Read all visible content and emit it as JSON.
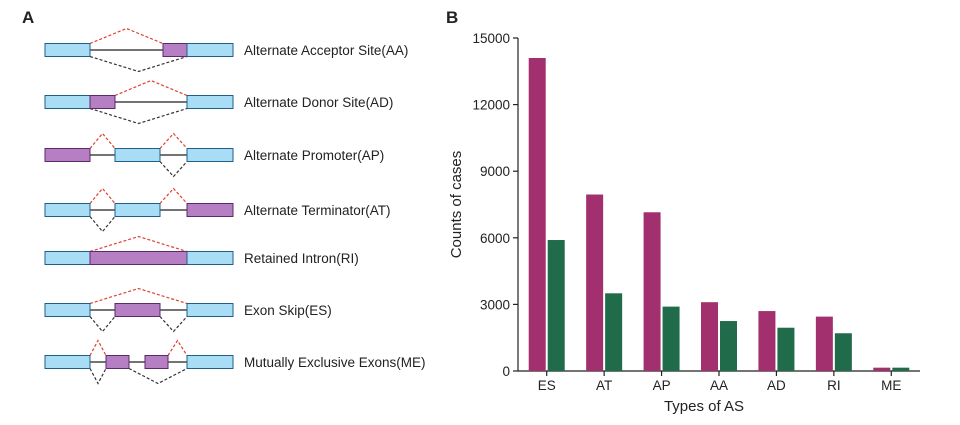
{
  "panels": {
    "a": "A",
    "b": "B"
  },
  "colors": {
    "constitutive_exon": "#a9dcf5",
    "alternative_exon": "#b67fc4",
    "exon_stroke": "#1f5f8a",
    "alt_stroke": "#5a2a6a",
    "red_dash": "#e04030",
    "black_dash": "#333333",
    "series1": "#a3306e",
    "series2": "#1f6b4a"
  },
  "diagram": {
    "events": [
      {
        "label": "Alternate Acceptor Site(AA)"
      },
      {
        "label": "Alternate Donor Site(AD)"
      },
      {
        "label": "Alternate Promoter(AP)"
      },
      {
        "label": "Alternate Terminator(AT)"
      },
      {
        "label": "Retained Intron(RI)"
      },
      {
        "label": "Exon Skip(ES)"
      },
      {
        "label": "Mutually Exclusive Exons(ME)"
      }
    ]
  },
  "chart_data": {
    "type": "bar",
    "title": "",
    "xlabel": "Types of AS",
    "ylabel": "Counts of cases",
    "categories": [
      "ES",
      "AT",
      "AP",
      "AA",
      "AD",
      "RI",
      "ME"
    ],
    "series": [
      {
        "values": [
          14100,
          7950,
          7150,
          3100,
          2700,
          2450,
          150
        ]
      },
      {
        "values": [
          5900,
          3500,
          2900,
          2250,
          1950,
          1700,
          150
        ]
      }
    ],
    "ylim": [
      0,
      15000
    ],
    "yticks": [
      0,
      3000,
      6000,
      9000,
      12000,
      15000
    ],
    "grid": false,
    "legend": "none"
  }
}
